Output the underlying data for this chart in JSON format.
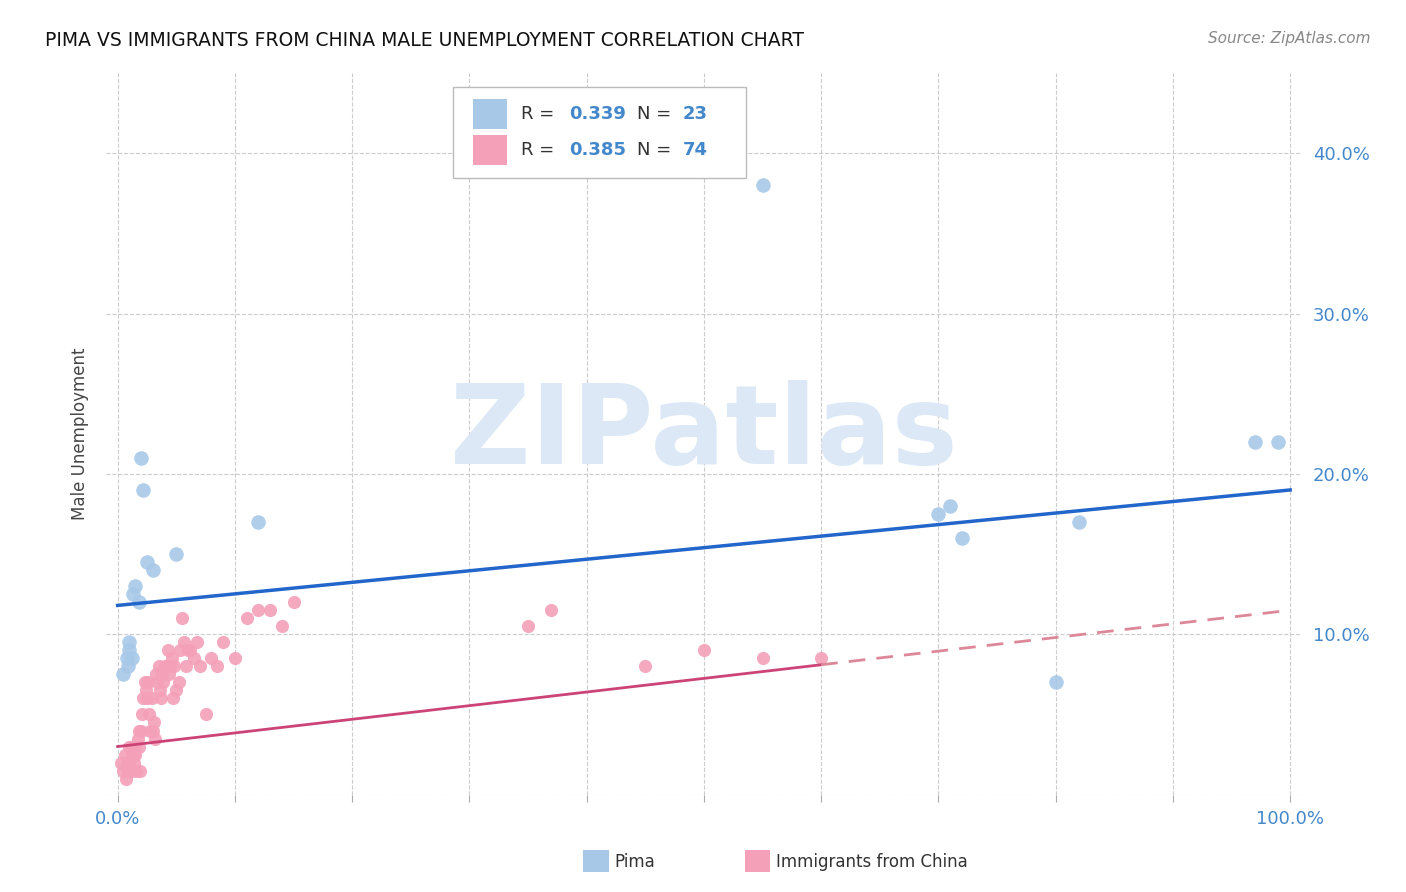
{
  "title": "PIMA VS IMMIGRANTS FROM CHINA MALE UNEMPLOYMENT CORRELATION CHART",
  "source": "Source: ZipAtlas.com",
  "ylabel": "Male Unemployment",
  "xlim": [
    -0.01,
    1.01
  ],
  "ylim": [
    0.0,
    0.45
  ],
  "pima_color": "#a8c8e8",
  "china_color": "#f4a0b8",
  "trendline_blue": "#2266cc",
  "trendline_pink": "#cc4477",
  "trendline_pink_light": "#dd8899",
  "watermark_color": "#dce8f5",
  "pima_R": "0.339",
  "pima_N": "23",
  "china_R": "0.385",
  "china_N": "74",
  "legend_label_pima": "Pima",
  "legend_label_china": "Immigrants from China",
  "watermark": "ZIPatlas",
  "pima_x": [
    0.005,
    0.008,
    0.009,
    0.01,
    0.01,
    0.012,
    0.013,
    0.015,
    0.018,
    0.02,
    0.022,
    0.025,
    0.03,
    0.05,
    0.12,
    0.55,
    0.7,
    0.71,
    0.72,
    0.8,
    0.82,
    0.97,
    0.99
  ],
  "pima_y": [
    0.075,
    0.085,
    0.08,
    0.09,
    0.095,
    0.085,
    0.125,
    0.13,
    0.12,
    0.21,
    0.19,
    0.145,
    0.14,
    0.15,
    0.17,
    0.38,
    0.175,
    0.18,
    0.16,
    0.07,
    0.17,
    0.22,
    0.22
  ],
  "china_x": [
    0.003,
    0.005,
    0.006,
    0.007,
    0.008,
    0.009,
    0.01,
    0.01,
    0.011,
    0.012,
    0.013,
    0.014,
    0.015,
    0.015,
    0.016,
    0.017,
    0.018,
    0.018,
    0.019,
    0.02,
    0.021,
    0.022,
    0.023,
    0.024,
    0.025,
    0.026,
    0.027,
    0.028,
    0.029,
    0.03,
    0.031,
    0.032,
    0.033,
    0.034,
    0.035,
    0.036,
    0.037,
    0.038,
    0.039,
    0.04,
    0.042,
    0.043,
    0.044,
    0.045,
    0.046,
    0.047,
    0.048,
    0.05,
    0.052,
    0.053,
    0.055,
    0.057,
    0.058,
    0.06,
    0.062,
    0.065,
    0.068,
    0.07,
    0.075,
    0.08,
    0.085,
    0.09,
    0.1,
    0.11,
    0.12,
    0.13,
    0.14,
    0.15,
    0.35,
    0.37,
    0.45,
    0.5,
    0.55,
    0.6
  ],
  "china_y": [
    0.02,
    0.015,
    0.025,
    0.01,
    0.02,
    0.015,
    0.03,
    0.02,
    0.015,
    0.03,
    0.025,
    0.02,
    0.03,
    0.025,
    0.015,
    0.035,
    0.04,
    0.03,
    0.015,
    0.04,
    0.05,
    0.06,
    0.07,
    0.065,
    0.06,
    0.07,
    0.05,
    0.04,
    0.06,
    0.04,
    0.045,
    0.035,
    0.075,
    0.07,
    0.08,
    0.065,
    0.06,
    0.075,
    0.07,
    0.08,
    0.08,
    0.09,
    0.075,
    0.08,
    0.085,
    0.06,
    0.08,
    0.065,
    0.07,
    0.09,
    0.11,
    0.095,
    0.08,
    0.09,
    0.09,
    0.085,
    0.095,
    0.08,
    0.05,
    0.085,
    0.08,
    0.095,
    0.085,
    0.11,
    0.115,
    0.115,
    0.105,
    0.12,
    0.105,
    0.115,
    0.08,
    0.09,
    0.085,
    0.085
  ],
  "china_data_cutoff": 0.6,
  "pima_trend_x0": 0.0,
  "pima_trend_y0": 0.118,
  "pima_trend_x1": 1.0,
  "pima_trend_y1": 0.19,
  "china_trend_x0": 0.0,
  "china_trend_y0": 0.03,
  "china_trend_x1": 1.0,
  "china_trend_y1": 0.115
}
